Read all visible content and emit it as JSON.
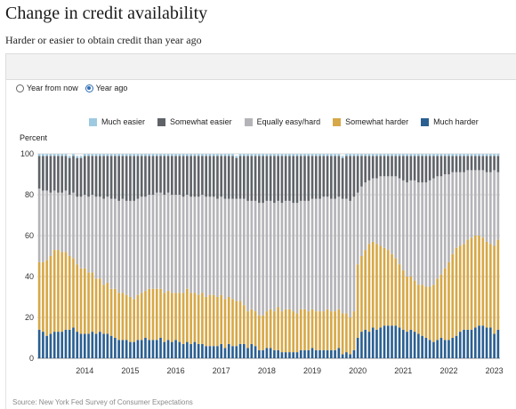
{
  "header": {
    "title": "Change in credit availability",
    "subtitle": "Harder or easier to obtain credit than year ago"
  },
  "controls": {
    "radio_options": [
      {
        "label": "Year from now",
        "selected": false
      },
      {
        "label": "Year ago",
        "selected": true
      }
    ]
  },
  "footer": {
    "source": "Source: New York Fed Survey of Consumer Expectations"
  },
  "colors": {
    "much_easier": "#9ecae1",
    "somewhat_easier": "#5f6368",
    "equally": "#b4b4b8",
    "somewhat_harder": "#d6a848",
    "much_harder": "#2b5f91",
    "gridline": "#d8d8d8"
  },
  "chart_data": {
    "type": "bar",
    "stacked": true,
    "ylabel": "Percent",
    "ylim": [
      0,
      100
    ],
    "yticks": [
      0,
      20,
      40,
      60,
      80,
      100
    ],
    "grid": true,
    "legend_position": "top",
    "x_tick_labels": [
      "2014",
      "2015",
      "2016",
      "2017",
      "2018",
      "2019",
      "2020",
      "2021",
      "2022",
      "2023"
    ],
    "x_start": "2013-07",
    "frequency": "monthly",
    "x_end": "2023-08",
    "series": [
      {
        "name": "Much easier",
        "color_key": "much_easier",
        "values": [
          1,
          1,
          1,
          1,
          1,
          1,
          1,
          1,
          1,
          1,
          1,
          1,
          1,
          1,
          1,
          1,
          1,
          1,
          1,
          1,
          1,
          1,
          1,
          1,
          1,
          1,
          1,
          1,
          1,
          1,
          1,
          1,
          1,
          1,
          1,
          1,
          1,
          1,
          1,
          1,
          1,
          1,
          1,
          1,
          1,
          1,
          1,
          1,
          1,
          1,
          1,
          1,
          1,
          1,
          1,
          1,
          1,
          1,
          1,
          1,
          1,
          1,
          1,
          1,
          1,
          1,
          1,
          1,
          1,
          1,
          1,
          1,
          1,
          1,
          1,
          1,
          1,
          1,
          1,
          1,
          1,
          1,
          1,
          1,
          1,
          1,
          1,
          1,
          1,
          1,
          1,
          1,
          1,
          1,
          1,
          1,
          1,
          1,
          1,
          1,
          1,
          1,
          1,
          1,
          1,
          1,
          1,
          1,
          1,
          1,
          1,
          1,
          1,
          1,
          1,
          1,
          1,
          1,
          1,
          1,
          1,
          1
        ]
      },
      {
        "name": "Somewhat easier",
        "color_key": "somewhat_easier",
        "values": [
          16,
          17,
          17,
          18,
          17,
          18,
          18,
          17,
          18,
          18,
          19,
          19,
          19,
          20,
          19,
          20,
          20,
          21,
          20,
          21,
          21,
          22,
          21,
          22,
          22,
          22,
          21,
          20,
          20,
          19,
          19,
          18,
          18,
          19,
          18,
          19,
          19,
          19,
          20,
          19,
          20,
          20,
          20,
          19,
          20,
          20,
          20,
          21,
          20,
          21,
          21,
          21,
          20,
          21,
          21,
          22,
          22,
          22,
          23,
          23,
          22,
          22,
          23,
          22,
          23,
          22,
          22,
          23,
          23,
          22,
          22,
          22,
          21,
          21,
          21,
          20,
          20,
          21,
          21,
          20,
          20,
          21,
          22,
          20,
          18,
          15,
          13,
          12,
          11,
          11,
          10,
          10,
          10,
          10,
          10,
          11,
          12,
          13,
          12,
          12,
          13,
          13,
          13,
          12,
          11,
          10,
          10,
          9,
          9,
          8,
          8,
          8,
          8,
          7,
          7,
          7,
          7,
          7,
          8,
          8,
          7,
          8
        ]
      },
      {
        "name": "Equally easy/hard",
        "color_key": "equally",
        "values": [
          36,
          35,
          34,
          31,
          29,
          28,
          29,
          30,
          30,
          32,
          33,
          35,
          36,
          37,
          38,
          40,
          40,
          42,
          42,
          44,
          44,
          45,
          46,
          46,
          47,
          48,
          47,
          47,
          46,
          46,
          46,
          47,
          47,
          48,
          48,
          48,
          48,
          48,
          47,
          46,
          47,
          47,
          48,
          48,
          49,
          48,
          48,
          48,
          48,
          49,
          48,
          49,
          50,
          50,
          52,
          54,
          53,
          54,
          55,
          55,
          54,
          53,
          53,
          52,
          53,
          53,
          53,
          53,
          54,
          53,
          53,
          54,
          54,
          55,
          55,
          56,
          55,
          55,
          55,
          55,
          56,
          56,
          57,
          56,
          35,
          34,
          33,
          31,
          31,
          32,
          34,
          35,
          36,
          38,
          40,
          42,
          44,
          46,
          47,
          49,
          50,
          50,
          51,
          52,
          52,
          50,
          48,
          46,
          43,
          40,
          37,
          36,
          35,
          34,
          33,
          32,
          32,
          33,
          34,
          35,
          37,
          33
        ]
      },
      {
        "name": "Somewhat harder",
        "color_key": "somewhat_harder",
        "values": [
          33,
          34,
          37,
          38,
          40,
          40,
          39,
          38,
          36,
          34,
          33,
          32,
          32,
          30,
          29,
          27,
          26,
          24,
          25,
          23,
          24,
          23,
          23,
          22,
          22,
          21,
          22,
          23,
          23,
          25,
          25,
          25,
          24,
          24,
          24,
          24,
          23,
          24,
          25,
          26,
          25,
          24,
          24,
          25,
          24,
          25,
          25,
          24,
          24,
          24,
          23,
          23,
          22,
          21,
          19,
          18,
          17,
          17,
          17,
          17,
          18,
          19,
          19,
          21,
          20,
          21,
          21,
          20,
          19,
          20,
          20,
          19,
          19,
          19,
          19,
          19,
          20,
          19,
          19,
          19,
          20,
          19,
          18,
          19,
          36,
          37,
          39,
          43,
          42,
          42,
          40,
          38,
          37,
          35,
          33,
          31,
          29,
          27,
          26,
          25,
          24,
          25,
          25,
          26,
          28,
          30,
          31,
          35,
          38,
          41,
          43,
          42,
          42,
          44,
          45,
          45,
          44,
          43,
          42,
          41,
          43,
          44
        ]
      },
      {
        "name": "Much harder",
        "color_key": "much_harder",
        "values": [
          14,
          13,
          11,
          12,
          13,
          13,
          13,
          14,
          14,
          15,
          13,
          12,
          12,
          12,
          13,
          12,
          13,
          12,
          12,
          11,
          10,
          9,
          9,
          9,
          8,
          8,
          9,
          9,
          10,
          9,
          9,
          9,
          10,
          8,
          9,
          8,
          9,
          8,
          7,
          8,
          7,
          8,
          7,
          7,
          6,
          6,
          6,
          6,
          7,
          5,
          7,
          6,
          6,
          7,
          7,
          5,
          7,
          6,
          4,
          4,
          5,
          5,
          4,
          4,
          3,
          3,
          3,
          3,
          3,
          4,
          4,
          4,
          5,
          4,
          4,
          4,
          4,
          4,
          4,
          5,
          2,
          3,
          2,
          4,
          10,
          13,
          14,
          13,
          15,
          14,
          15,
          16,
          16,
          16,
          16,
          15,
          14,
          13,
          14,
          13,
          12,
          11,
          10,
          9,
          8,
          9,
          10,
          9,
          9,
          10,
          11,
          13,
          14,
          14,
          14,
          15,
          16,
          16,
          15,
          15,
          12,
          14
        ]
      }
    ]
  }
}
